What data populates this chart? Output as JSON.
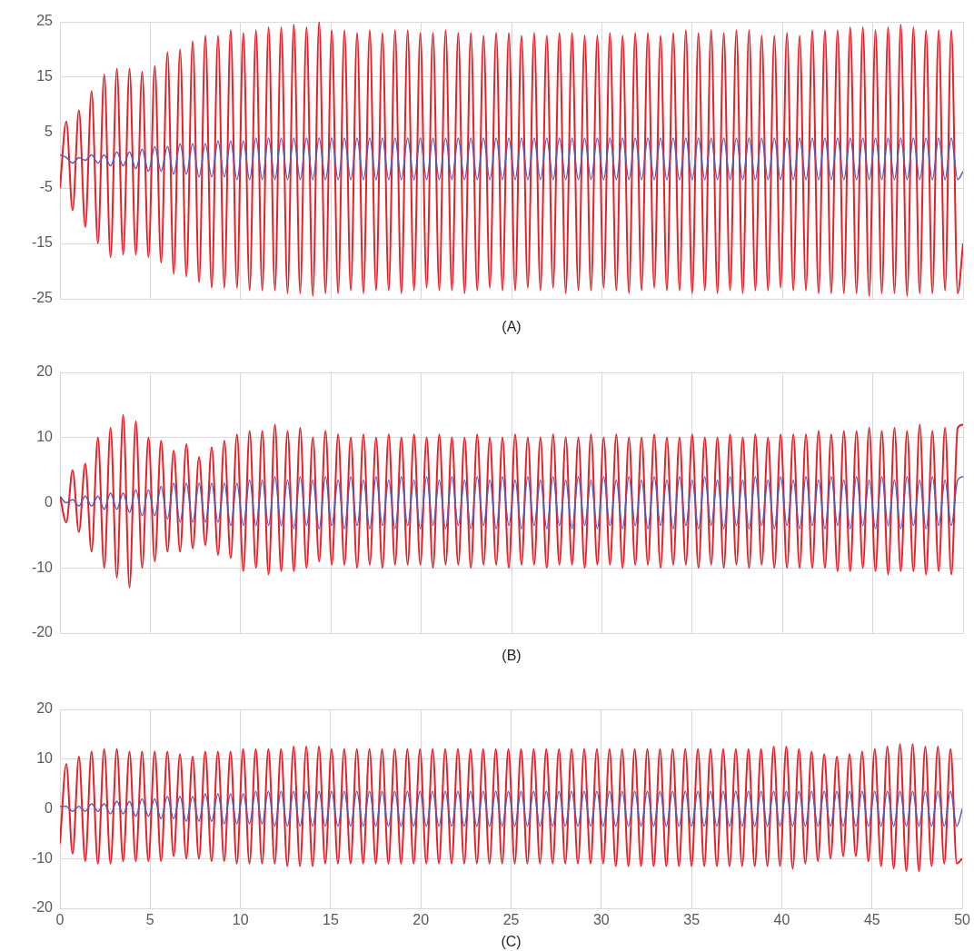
{
  "chart_data": [
    {
      "type": "line",
      "xlabel": "(A)",
      "tick_labels": "y",
      "grid": true,
      "xlim": [
        0,
        50
      ],
      "xticks": [
        0,
        5,
        10,
        15,
        20,
        25,
        30,
        35,
        40,
        45,
        50
      ],
      "ylim": [
        -25,
        25
      ],
      "yticks": [
        -25,
        -15,
        -5,
        5,
        15,
        25
      ],
      "x": [
        0,
        0.35,
        0.7,
        1.05,
        1.4,
        1.75,
        2.1,
        2.45,
        2.8,
        3.15,
        3.5,
        3.85,
        4.2,
        4.55,
        4.9,
        5.25,
        5.6,
        5.95,
        6.3,
        6.65,
        7,
        7.35,
        7.7,
        8.05,
        8.4,
        8.75,
        9.1,
        9.45,
        9.8,
        10.15,
        10.5,
        10.85,
        11.2,
        11.55,
        11.9,
        12.25,
        12.6,
        12.95,
        13.3,
        13.65,
        14,
        14.35,
        14.7,
        15.05,
        15.4,
        15.75,
        16.1,
        16.45,
        16.8,
        17.15,
        17.5,
        17.85,
        18.2,
        18.55,
        18.9,
        19.25,
        19.6,
        19.95,
        20.3,
        20.65,
        21,
        21.35,
        21.7,
        22.05,
        22.4,
        22.75,
        23.1,
        23.45,
        23.8,
        24.15,
        24.5,
        24.85,
        25.2,
        25.55,
        25.9,
        26.25,
        26.6,
        26.95,
        27.3,
        27.65,
        28,
        28.35,
        28.7,
        29.05,
        29.4,
        29.75,
        30.1,
        30.45,
        30.8,
        31.15,
        31.5,
        31.85,
        32.2,
        32.55,
        32.9,
        33.25,
        33.6,
        33.95,
        34.3,
        34.65,
        35,
        35.35,
        35.7,
        36.05,
        36.4,
        36.75,
        37.1,
        37.45,
        37.8,
        38.15,
        38.5,
        38.85,
        39.2,
        39.55,
        39.9,
        40.25,
        40.6,
        40.95,
        41.3,
        41.65,
        42,
        42.35,
        42.7,
        43.05,
        43.4,
        43.75,
        44.1,
        44.45,
        44.8,
        45.15,
        45.5,
        45.85,
        46.2,
        46.55,
        46.9,
        47.25,
        47.6,
        47.95,
        48.3,
        48.65,
        49,
        49.35,
        49.7,
        50
      ],
      "series": [
        {
          "color": "#ee1c25",
          "values": [
            -5,
            7,
            -9,
            9,
            -12,
            12.5,
            -15,
            15.5,
            -17.5,
            16.5,
            -17,
            16.5,
            -17,
            16,
            -17.5,
            17,
            -18.5,
            19.5,
            -20.5,
            20,
            -21,
            21.5,
            -22,
            22.5,
            -23,
            22.5,
            -23,
            23.5,
            -23,
            23,
            -23.5,
            23.5,
            -23.5,
            24,
            -23.5,
            24,
            -24,
            24.5,
            -24,
            24,
            -24.5,
            25,
            -24,
            23.5,
            -24,
            23.5,
            -23.5,
            23,
            -24,
            23.5,
            -23.5,
            23,
            -23.5,
            23.5,
            -24,
            23.5,
            -23.5,
            23,
            -23,
            23,
            -23.5,
            23.5,
            -23.5,
            23,
            -24,
            23,
            -23.5,
            22.5,
            -23,
            23,
            -23.5,
            23,
            -23.5,
            22.5,
            -23,
            23,
            -23.5,
            22.5,
            -23,
            23,
            -24,
            23,
            -23.5,
            22.5,
            -23.5,
            22.5,
            -23,
            23,
            -23.5,
            22.5,
            -24,
            23,
            -23.5,
            23,
            -23,
            22.5,
            -23.5,
            23,
            -23.5,
            23.5,
            -24,
            23,
            -23.5,
            23.5,
            -24,
            23,
            -23.5,
            23.5,
            -24,
            23.5,
            -23.5,
            22.5,
            -23.5,
            22.5,
            -23,
            23,
            -23.5,
            22.5,
            -23.5,
            23.5,
            -24,
            23.5,
            -24,
            23.5,
            -24,
            24,
            -24,
            24,
            -24.5,
            23.5,
            -24,
            24,
            -24,
            24.5,
            -24.5,
            24,
            -24,
            23.5,
            -24,
            23.5,
            -23.5,
            23.5,
            -24,
            -15
          ]
        },
        {
          "color": "#5b5bb4",
          "values": [
            1,
            0.5,
            -0.5,
            0.5,
            0,
            1,
            -0.5,
            1,
            -1,
            1.5,
            -1,
            1.5,
            -1.5,
            2,
            -2,
            2.5,
            -2,
            2.5,
            -2.5,
            3,
            -2.5,
            3,
            -3,
            3,
            -3,
            3.5,
            -3,
            3.5,
            -3.5,
            3.5,
            -3.5,
            4,
            -3.5,
            4,
            -3.5,
            4,
            -3.5,
            4,
            -3.5,
            4,
            -3.5,
            4,
            -3.5,
            4,
            -3.5,
            4,
            -3.5,
            4,
            -3.5,
            4,
            -3.5,
            4,
            -3.5,
            4,
            -3.5,
            4,
            -3.5,
            4,
            -3.5,
            4,
            -3.5,
            4,
            -3.5,
            4,
            -3.5,
            4,
            -3.5,
            4,
            -3.5,
            4,
            -3.5,
            4,
            -3.5,
            4,
            -3.5,
            4,
            -3.5,
            4,
            -3.5,
            4,
            -3.5,
            4,
            -3.5,
            4,
            -3.5,
            4,
            -3.5,
            4,
            -3.5,
            4,
            -3.5,
            4,
            -3.5,
            4,
            -3.5,
            4,
            -3.5,
            4,
            -3.5,
            4,
            -3.5,
            4,
            -3.5,
            4,
            -3.5,
            4,
            -3.5,
            4,
            -3.5,
            4,
            -3.5,
            4,
            -3.5,
            4,
            -3.5,
            4,
            -3.5,
            4,
            -3.5,
            4,
            -3.5,
            4,
            -3.5,
            4,
            -3.5,
            4,
            -3.5,
            4,
            -3.5,
            4,
            -3.5,
            4,
            -3.5,
            4,
            -3.5,
            4,
            -3.5,
            4,
            -3.5,
            4,
            -3.5,
            4,
            -3.5,
            -2
          ]
        }
      ]
    },
    {
      "type": "line",
      "xlabel": "(B)",
      "tick_labels": "y",
      "grid": true,
      "xlim": [
        0,
        50
      ],
      "xticks": [
        0,
        5,
        10,
        15,
        20,
        25,
        30,
        35,
        40,
        45,
        50
      ],
      "ylim": [
        -20,
        20
      ],
      "yticks": [
        -20,
        -10,
        0,
        10,
        20
      ],
      "x": [
        0,
        0.35,
        0.7,
        1.05,
        1.4,
        1.75,
        2.1,
        2.45,
        2.8,
        3.15,
        3.5,
        3.85,
        4.2,
        4.55,
        4.9,
        5.25,
        5.6,
        5.95,
        6.3,
        6.65,
        7,
        7.35,
        7.7,
        8.05,
        8.4,
        8.75,
        9.1,
        9.45,
        9.8,
        10.15,
        10.5,
        10.85,
        11.2,
        11.55,
        11.9,
        12.25,
        12.6,
        12.95,
        13.3,
        13.65,
        14,
        14.35,
        14.7,
        15.05,
        15.4,
        15.75,
        16.1,
        16.45,
        16.8,
        17.15,
        17.5,
        17.85,
        18.2,
        18.55,
        18.9,
        19.25,
        19.6,
        19.95,
        20.3,
        20.65,
        21,
        21.35,
        21.7,
        22.05,
        22.4,
        22.75,
        23.1,
        23.45,
        23.8,
        24.15,
        24.5,
        24.85,
        25.2,
        25.55,
        25.9,
        26.25,
        26.6,
        26.95,
        27.3,
        27.65,
        28,
        28.35,
        28.7,
        29.05,
        29.4,
        29.75,
        30.1,
        30.45,
        30.8,
        31.15,
        31.5,
        31.85,
        32.2,
        32.55,
        32.9,
        33.25,
        33.6,
        33.95,
        34.3,
        34.65,
        35,
        35.35,
        35.7,
        36.05,
        36.4,
        36.75,
        37.1,
        37.45,
        37.8,
        38.15,
        38.5,
        38.85,
        39.2,
        39.55,
        39.9,
        40.25,
        40.6,
        40.95,
        41.3,
        41.65,
        42,
        42.35,
        42.7,
        43.05,
        43.4,
        43.75,
        44.1,
        44.45,
        44.8,
        45.15,
        45.5,
        45.85,
        46.2,
        46.55,
        46.9,
        47.25,
        47.6,
        47.95,
        48.3,
        48.65,
        49,
        49.35,
        49.7,
        50
      ],
      "series": [
        {
          "color": "#ee1c25",
          "values": [
            1,
            -3,
            5,
            -4.5,
            6,
            -7.5,
            10,
            -10,
            11.5,
            -11.5,
            13.5,
            -13,
            12.5,
            -10,
            10,
            -9,
            9.5,
            -7.5,
            8,
            -7.5,
            9,
            -7,
            7,
            -6.5,
            8.5,
            -8,
            9.5,
            -8.5,
            10.5,
            -10.5,
            11,
            -10,
            11,
            -11,
            12,
            -10.5,
            11,
            -10.5,
            11.5,
            -10,
            10,
            -9,
            11,
            -9.5,
            10.5,
            -9.5,
            10,
            -10,
            10.5,
            -9.5,
            10,
            -10,
            10.5,
            -9.5,
            10,
            -9.5,
            10.5,
            -9.5,
            10,
            -10,
            10.5,
            -9.5,
            10,
            -9.5,
            10,
            -10,
            10.5,
            -9.5,
            10,
            -9.5,
            10,
            -10,
            10.5,
            -9.5,
            10,
            -9.5,
            10,
            -10,
            10.5,
            -9.5,
            10,
            -9.5,
            10,
            -10,
            10.5,
            -9.5,
            10,
            -9.5,
            10.5,
            -10,
            10,
            -9.5,
            10,
            -9.5,
            10.5,
            -10,
            10,
            -9.5,
            10,
            -9.5,
            10.5,
            -10,
            10,
            -9.5,
            10,
            -10,
            10.5,
            -9.5,
            10,
            -10,
            10.5,
            -9.5,
            10,
            -10,
            10.5,
            -10,
            10.5,
            -10,
            10.5,
            -10,
            11,
            -10,
            10.5,
            -10.5,
            11,
            -10.5,
            11,
            -10,
            11.5,
            -10.5,
            11,
            -11,
            11.5,
            -10.5,
            11,
            -10.5,
            12,
            -11,
            11,
            -10.5,
            11.5,
            -11,
            11.5,
            12
          ]
        },
        {
          "color": "#5b5bb4",
          "values": [
            1,
            0,
            0.5,
            -0.5,
            1,
            -0.5,
            1,
            -1,
            1.5,
            -1,
            1.5,
            -1.5,
            2,
            -2,
            2,
            -2,
            2.5,
            -2.5,
            3,
            -3,
            3,
            -3,
            3,
            -3,
            3,
            -3,
            3,
            -3.5,
            3,
            -3.5,
            3.5,
            -3.5,
            3.5,
            -3.5,
            4,
            -3.5,
            3.5,
            -4,
            4,
            -3.5,
            3.5,
            -4,
            4,
            -3.5,
            3.5,
            -4,
            4,
            -3.5,
            3.5,
            -4,
            4,
            -3.5,
            3.5,
            -4,
            4,
            -3.5,
            3.5,
            -4,
            4,
            -3.5,
            3.5,
            -4,
            4,
            -3.5,
            3.5,
            -4,
            4,
            -3.5,
            3.5,
            -4,
            4,
            -3.5,
            3.5,
            -4,
            4,
            -3.5,
            3.5,
            -4,
            4,
            -3.5,
            3.5,
            -4,
            4,
            -3.5,
            3.5,
            -4,
            4,
            -3.5,
            3.5,
            -4,
            4,
            -3.5,
            3.5,
            -4,
            4,
            -3.5,
            3.5,
            -4,
            4,
            -3.5,
            3.5,
            -4,
            4,
            -3.5,
            3.5,
            -4,
            4,
            -3.5,
            3.5,
            -4,
            4,
            -3.5,
            3.5,
            -4,
            4,
            -3.5,
            3.5,
            -4,
            4,
            -3.5,
            3.5,
            -4,
            4,
            -3.5,
            3.5,
            -4,
            4,
            -3.5,
            3.5,
            -4,
            4,
            -3.5,
            3.5,
            -4,
            4,
            -3.5,
            3.5,
            -4,
            4,
            -3.5,
            3.5,
            -3.5,
            3.5,
            4
          ]
        }
      ]
    },
    {
      "type": "line",
      "xlabel": "(C)",
      "grid": true,
      "xlim": [
        0,
        50
      ],
      "xticks": [
        0,
        5,
        10,
        15,
        20,
        25,
        30,
        35,
        40,
        45,
        50
      ],
      "ylim": [
        -20,
        20
      ],
      "yticks": [
        -20,
        -10,
        0,
        10,
        20
      ],
      "x": [
        0,
        0.35,
        0.7,
        1.05,
        1.4,
        1.75,
        2.1,
        2.45,
        2.8,
        3.15,
        3.5,
        3.85,
        4.2,
        4.55,
        4.9,
        5.25,
        5.6,
        5.95,
        6.3,
        6.65,
        7,
        7.35,
        7.7,
        8.05,
        8.4,
        8.75,
        9.1,
        9.45,
        9.8,
        10.15,
        10.5,
        10.85,
        11.2,
        11.55,
        11.9,
        12.25,
        12.6,
        12.95,
        13.3,
        13.65,
        14,
        14.35,
        14.7,
        15.05,
        15.4,
        15.75,
        16.1,
        16.45,
        16.8,
        17.15,
        17.5,
        17.85,
        18.2,
        18.55,
        18.9,
        19.25,
        19.6,
        19.95,
        20.3,
        20.65,
        21,
        21.35,
        21.7,
        22.05,
        22.4,
        22.75,
        23.1,
        23.45,
        23.8,
        24.15,
        24.5,
        24.85,
        25.2,
        25.55,
        25.9,
        26.25,
        26.6,
        26.95,
        27.3,
        27.65,
        28,
        28.35,
        28.7,
        29.05,
        29.4,
        29.75,
        30.1,
        30.45,
        30.8,
        31.15,
        31.5,
        31.85,
        32.2,
        32.55,
        32.9,
        33.25,
        33.6,
        33.95,
        34.3,
        34.65,
        35,
        35.35,
        35.7,
        36.05,
        36.4,
        36.75,
        37.1,
        37.45,
        37.8,
        38.15,
        38.5,
        38.85,
        39.2,
        39.55,
        39.9,
        40.25,
        40.6,
        40.95,
        41.3,
        41.65,
        42,
        42.35,
        42.7,
        43.05,
        43.4,
        43.75,
        44.1,
        44.45,
        44.8,
        45.15,
        45.5,
        45.85,
        46.2,
        46.55,
        46.9,
        47.25,
        47.6,
        47.95,
        48.3,
        48.65,
        49,
        49.35,
        49.7,
        50
      ],
      "series": [
        {
          "color": "#ee1c25",
          "values": [
            -7,
            9,
            -9,
            10.5,
            -10.5,
            11.5,
            -11,
            12,
            -11,
            12,
            -10.5,
            11.5,
            -10.5,
            11.5,
            -10.5,
            11.5,
            -10.5,
            11.5,
            -9.5,
            11,
            -10,
            10.5,
            -10,
            11.5,
            -10.5,
            11.5,
            -10.5,
            11.5,
            -11,
            12,
            -11,
            12,
            -11,
            12,
            -11,
            12,
            -11.5,
            12.5,
            -11.5,
            12.5,
            -11.5,
            12.5,
            -11,
            12,
            -11,
            12,
            -11,
            12,
            -11,
            12,
            -11,
            12,
            -11,
            12,
            -11,
            12,
            -11,
            12,
            -11,
            12,
            -11,
            12,
            -11,
            12,
            -11,
            12,
            -11,
            12,
            -11,
            12,
            -11,
            12,
            -11,
            12,
            -11,
            12,
            -11,
            12,
            -11,
            12,
            -11,
            12,
            -11,
            12,
            -11,
            12,
            -11,
            12,
            -11.5,
            12,
            -11.5,
            12,
            -11.5,
            12,
            -11.5,
            12,
            -11.5,
            12,
            -11.5,
            12,
            -11.5,
            12,
            -11.5,
            12,
            -11.5,
            12,
            -11.5,
            12,
            -11.5,
            12,
            -11.5,
            12,
            -11.5,
            12.5,
            -11.5,
            12.5,
            -12,
            12,
            -11,
            11.5,
            -10.5,
            11,
            -10,
            10.5,
            -9.5,
            11,
            -9.5,
            11.5,
            -10.5,
            12,
            -11.5,
            12.5,
            -12,
            13,
            -12.5,
            13,
            -12.5,
            12.5,
            -11.5,
            12.5,
            -11,
            12,
            -11,
            -10
          ]
        },
        {
          "color": "#5b5bb4",
          "values": [
            0.5,
            0.5,
            -0.5,
            0.5,
            -0.5,
            1,
            -0.5,
            1,
            -1,
            1.5,
            -1,
            1.5,
            -1.5,
            2,
            -1.5,
            2,
            -2,
            2.5,
            -2,
            2.5,
            -2.5,
            2.5,
            -2.5,
            3,
            -2.5,
            3,
            -3,
            3,
            -3,
            3,
            -3,
            3.5,
            -3,
            3.5,
            -3.5,
            3.5,
            -3.5,
            3.5,
            -3.5,
            3.5,
            -3.5,
            3.5,
            -3.5,
            3.5,
            -3.5,
            3.5,
            -3.5,
            3.5,
            -3.5,
            3.5,
            -3.5,
            3.5,
            -3.5,
            3.5,
            -3.5,
            3.5,
            -3.5,
            3.5,
            -3.5,
            3.5,
            -3.5,
            3.5,
            -3.5,
            3.5,
            -3.5,
            3.5,
            -3.5,
            3.5,
            -3.5,
            3.5,
            -3.5,
            3.5,
            -3.5,
            3.5,
            -3.5,
            3.5,
            -3.5,
            3.5,
            -3.5,
            3.5,
            -3.5,
            3.5,
            -3.5,
            3.5,
            -3.5,
            3.5,
            -3.5,
            3.5,
            -3.5,
            3.5,
            -3.5,
            3.5,
            -3.5,
            3.5,
            -3.5,
            3.5,
            -3.5,
            3.5,
            -3.5,
            3.5,
            -3.5,
            3.5,
            -3.5,
            3.5,
            -3.5,
            3.5,
            -3.5,
            3.5,
            -3.5,
            3.5,
            -3.5,
            3.5,
            -3.5,
            3.5,
            -3.5,
            3.5,
            -3.5,
            3.5,
            -3.5,
            3.5,
            -3.5,
            3.5,
            -3.5,
            3.5,
            -3.5,
            3.5,
            -3.5,
            3.5,
            -3.5,
            3.5,
            -3.5,
            3.5,
            -3.5,
            3.5,
            -3.5,
            3.5,
            -3.5,
            3.5,
            -3.5,
            3.5,
            -3.5,
            3.5,
            -3.5,
            0
          ]
        }
      ]
    }
  ]
}
